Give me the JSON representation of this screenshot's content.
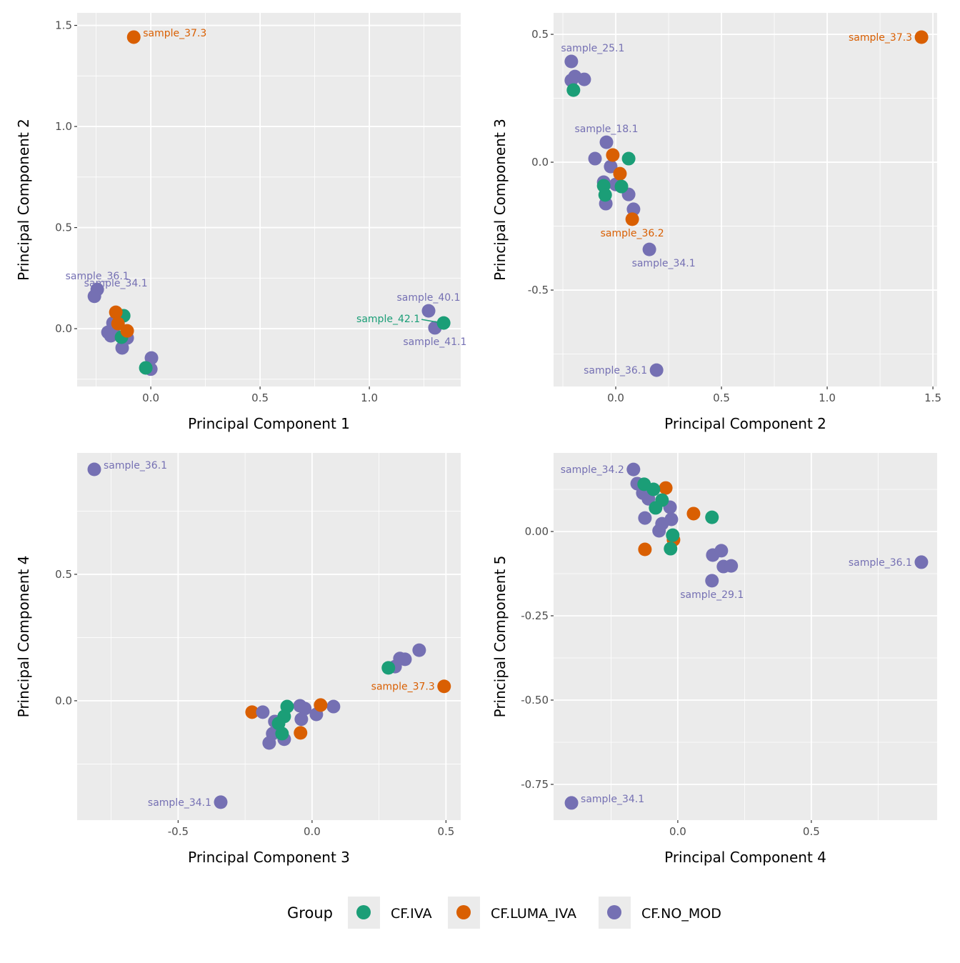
{
  "colors": {
    "CF.IVA": "#1B9E77",
    "CF.LUMA_IVA": "#D95F02",
    "CF.NO_MOD": "#7570B3",
    "panel_bg": "#EBEBEB",
    "grid": "#FFFFFF"
  },
  "legend": {
    "title": "Group",
    "entries": [
      "CF.IVA",
      "CF.LUMA_IVA",
      "CF.NO_MOD"
    ],
    "placement": "bottom"
  },
  "chart_data": [
    {
      "type": "scatter",
      "xlabel": "Principal Component 1",
      "ylabel": "Principal Component 2",
      "xlim": [
        -0.337,
        1.418
      ],
      "ylim": [
        -0.286,
        1.562
      ],
      "grid": true,
      "xticks": [
        {
          "v": 0,
          "label": "0.0"
        },
        {
          "v": 0.5,
          "label": "0.5"
        },
        {
          "v": 1.0,
          "label": "1.0"
        }
      ],
      "yticks": [
        {
          "v": 0,
          "label": "0.0"
        },
        {
          "v": 0.5,
          "label": "0.5"
        },
        {
          "v": 1.0,
          "label": "1.0"
        },
        {
          "v": 1.5,
          "label": "1.5"
        }
      ],
      "points": [
        {
          "x": -0.245,
          "y": 0.194,
          "g": "CF.NO_MOD",
          "label": "sample_36.1",
          "pos": "above"
        },
        {
          "x": -0.258,
          "y": 0.16,
          "g": "CF.NO_MOD",
          "label": "sample_34.1",
          "pos": "above-right"
        },
        {
          "x": -0.173,
          "y": 0.028,
          "g": "CF.NO_MOD"
        },
        {
          "x": -0.167,
          "y": 0.011,
          "g": "CF.NO_MOD"
        },
        {
          "x": -0.196,
          "y": -0.018,
          "g": "CF.NO_MOD"
        },
        {
          "x": -0.183,
          "y": -0.035,
          "g": "CF.NO_MOD"
        },
        {
          "x": -0.108,
          "y": -0.046,
          "g": "CF.NO_MOD"
        },
        {
          "x": -0.131,
          "y": -0.095,
          "g": "CF.NO_MOD"
        },
        {
          "x": 0.003,
          "y": -0.145,
          "g": "CF.NO_MOD"
        },
        {
          "x": 0.0,
          "y": -0.2,
          "g": "CF.NO_MOD"
        },
        {
          "x": -0.124,
          "y": 0.064,
          "g": "CF.IVA"
        },
        {
          "x": -0.134,
          "y": -0.042,
          "g": "CF.IVA"
        },
        {
          "x": -0.023,
          "y": -0.194,
          "g": "CF.IVA"
        },
        {
          "x": -0.16,
          "y": 0.081,
          "g": "CF.LUMA_IVA"
        },
        {
          "x": -0.15,
          "y": 0.025,
          "g": "CF.LUMA_IVA"
        },
        {
          "x": -0.108,
          "y": -0.011,
          "g": "CF.LUMA_IVA"
        },
        {
          "x": -0.078,
          "y": 1.442,
          "g": "CF.LUMA_IVA",
          "label": "sample_37.3",
          "pos": "right"
        },
        {
          "x": 1.271,
          "y": 0.088,
          "g": "CF.NO_MOD",
          "label": "sample_40.1",
          "pos": "above"
        },
        {
          "x": 1.3,
          "y": 0.004,
          "g": "CF.NO_MOD",
          "label": "sample_41.1",
          "pos": "below"
        },
        {
          "x": 1.34,
          "y": 0.028,
          "g": "CF.IVA",
          "label": "sample_42.1",
          "pos": "left-line"
        }
      ]
    },
    {
      "type": "scatter",
      "xlabel": "Principal Component 2",
      "ylabel": "Principal Component 3",
      "xlim": [
        -0.294,
        1.52
      ],
      "ylim": [
        -0.877,
        0.584
      ],
      "grid": true,
      "xticks": [
        {
          "v": 0,
          "label": "0.0"
        },
        {
          "v": 0.5,
          "label": "0.5"
        },
        {
          "v": 1.0,
          "label": "1.0"
        },
        {
          "v": 1.5,
          "label": "1.5"
        }
      ],
      "yticks": [
        {
          "v": -0.5,
          "label": "-0.5"
        },
        {
          "v": 0,
          "label": "0.0"
        },
        {
          "v": 0.5,
          "label": "0.5"
        }
      ],
      "points": [
        {
          "x": -0.21,
          "y": 0.394,
          "g": "CF.NO_MOD",
          "label": "sample_25.1",
          "pos": "above-right"
        },
        {
          "x": -0.193,
          "y": 0.335,
          "g": "CF.NO_MOD"
        },
        {
          "x": -0.149,
          "y": 0.324,
          "g": "CF.NO_MOD"
        },
        {
          "x": -0.21,
          "y": 0.32,
          "g": "CF.NO_MOD"
        },
        {
          "x": -0.2,
          "y": 0.282,
          "g": "CF.IVA"
        },
        {
          "x": -0.044,
          "y": 0.078,
          "g": "CF.NO_MOD",
          "label": "sample_18.1",
          "pos": "above"
        },
        {
          "x": -0.098,
          "y": 0.014,
          "g": "CF.NO_MOD"
        },
        {
          "x": -0.024,
          "y": -0.017,
          "g": "CF.NO_MOD"
        },
        {
          "x": -0.057,
          "y": -0.078,
          "g": "CF.NO_MOD"
        },
        {
          "x": 0.0,
          "y": -0.087,
          "g": "CF.NO_MOD"
        },
        {
          "x": 0.061,
          "y": -0.126,
          "g": "CF.NO_MOD"
        },
        {
          "x": -0.047,
          "y": -0.162,
          "g": "CF.NO_MOD"
        },
        {
          "x": 0.084,
          "y": -0.184,
          "g": "CF.NO_MOD"
        },
        {
          "x": -0.014,
          "y": 0.028,
          "g": "CF.LUMA_IVA"
        },
        {
          "x": 0.061,
          "y": 0.014,
          "g": "CF.IVA"
        },
        {
          "x": 0.02,
          "y": -0.045,
          "g": "CF.LUMA_IVA"
        },
        {
          "x": -0.057,
          "y": -0.092,
          "g": "CF.IVA"
        },
        {
          "x": 0.027,
          "y": -0.095,
          "g": "CF.IVA"
        },
        {
          "x": -0.05,
          "y": -0.128,
          "g": "CF.IVA"
        },
        {
          "x": 0.078,
          "y": -0.223,
          "g": "CF.LUMA_IVA",
          "label": "sample_36.2",
          "pos": "below"
        },
        {
          "x": 0.159,
          "y": -0.341,
          "g": "CF.NO_MOD",
          "label": "sample_34.1",
          "pos": "below-right"
        },
        {
          "x": 0.193,
          "y": -0.813,
          "g": "CF.NO_MOD",
          "label": "sample_36.1",
          "pos": "left"
        },
        {
          "x": 1.446,
          "y": 0.489,
          "g": "CF.LUMA_IVA",
          "label": "sample_37.3",
          "pos": "left"
        }
      ]
    },
    {
      "type": "scatter",
      "xlabel": "Principal Component 3",
      "ylabel": "Principal Component 4",
      "xlim": [
        -0.877,
        0.555
      ],
      "ylim": [
        -0.472,
        0.98
      ],
      "grid": true,
      "xticks": [
        {
          "v": -0.5,
          "label": "-0.5"
        },
        {
          "v": 0,
          "label": "0.0"
        },
        {
          "v": 0.5,
          "label": "0.5"
        }
      ],
      "yticks": [
        {
          "v": 0,
          "label": "0.0"
        },
        {
          "v": 0.5,
          "label": "0.5"
        }
      ],
      "points": [
        {
          "x": -0.813,
          "y": 0.915,
          "g": "CF.NO_MOD",
          "label": "sample_36.1",
          "pos": "right"
        },
        {
          "x": 0.4,
          "y": 0.2,
          "g": "CF.NO_MOD"
        },
        {
          "x": 0.328,
          "y": 0.167,
          "g": "CF.NO_MOD"
        },
        {
          "x": 0.347,
          "y": 0.164,
          "g": "CF.NO_MOD"
        },
        {
          "x": 0.31,
          "y": 0.135,
          "g": "CF.NO_MOD"
        },
        {
          "x": 0.285,
          "y": 0.13,
          "g": "CF.IVA"
        },
        {
          "x": 0.493,
          "y": 0.057,
          "g": "CF.LUMA_IVA",
          "label": "sample_37.3",
          "pos": "left"
        },
        {
          "x": -0.224,
          "y": -0.045,
          "g": "CF.LUMA_IVA"
        },
        {
          "x": -0.184,
          "y": -0.045,
          "g": "CF.NO_MOD"
        },
        {
          "x": -0.045,
          "y": -0.02,
          "g": "CF.NO_MOD"
        },
        {
          "x": 0.08,
          "y": -0.023,
          "g": "CF.NO_MOD"
        },
        {
          "x": 0.016,
          "y": -0.054,
          "g": "CF.NO_MOD"
        },
        {
          "x": -0.027,
          "y": -0.031,
          "g": "CF.NO_MOD"
        },
        {
          "x": -0.04,
          "y": -0.073,
          "g": "CF.NO_MOD"
        },
        {
          "x": -0.139,
          "y": -0.082,
          "g": "CF.NO_MOD"
        },
        {
          "x": -0.147,
          "y": -0.13,
          "g": "CF.NO_MOD"
        },
        {
          "x": -0.104,
          "y": -0.152,
          "g": "CF.NO_MOD"
        },
        {
          "x": -0.16,
          "y": -0.167,
          "g": "CF.NO_MOD"
        },
        {
          "x": -0.093,
          "y": -0.023,
          "g": "CF.IVA"
        },
        {
          "x": 0.032,
          "y": -0.017,
          "g": "CF.LUMA_IVA"
        },
        {
          "x": -0.104,
          "y": -0.062,
          "g": "CF.IVA"
        },
        {
          "x": -0.125,
          "y": -0.09,
          "g": "CF.IVA"
        },
        {
          "x": -0.112,
          "y": -0.13,
          "g": "CF.IVA"
        },
        {
          "x": -0.043,
          "y": -0.127,
          "g": "CF.LUMA_IVA"
        },
        {
          "x": -0.341,
          "y": -0.401,
          "g": "CF.NO_MOD",
          "label": "sample_34.1",
          "pos": "left"
        }
      ]
    },
    {
      "type": "scatter",
      "xlabel": "Principal Component 4",
      "ylabel": "Principal Component 5",
      "xlim": [
        -0.465,
        0.971
      ],
      "ylim": [
        -0.856,
        0.233
      ],
      "grid": true,
      "xticks": [
        {
          "v": 0,
          "label": "0.0"
        },
        {
          "v": 0.5,
          "label": "0.5"
        }
      ],
      "yticks": [
        {
          "v": -0.75,
          "label": "-0.75"
        },
        {
          "v": -0.5,
          "label": "-0.50"
        },
        {
          "v": -0.25,
          "label": "-0.25"
        },
        {
          "v": 0,
          "label": "0.00"
        }
      ],
      "points": [
        {
          "x": -0.166,
          "y": 0.184,
          "g": "CF.NO_MOD",
          "label": "sample_34.2",
          "pos": "left"
        },
        {
          "x": -0.152,
          "y": 0.142,
          "g": "CF.NO_MOD"
        },
        {
          "x": -0.131,
          "y": 0.114,
          "g": "CF.NO_MOD"
        },
        {
          "x": -0.11,
          "y": 0.097,
          "g": "CF.NO_MOD"
        },
        {
          "x": -0.029,
          "y": 0.072,
          "g": "CF.NO_MOD"
        },
        {
          "x": -0.123,
          "y": 0.04,
          "g": "CF.NO_MOD"
        },
        {
          "x": -0.024,
          "y": 0.036,
          "g": "CF.NO_MOD"
        },
        {
          "x": -0.059,
          "y": 0.023,
          "g": "CF.NO_MOD"
        },
        {
          "x": -0.07,
          "y": 0.002,
          "g": "CF.NO_MOD"
        },
        {
          "x": -0.126,
          "y": 0.14,
          "g": "CF.IVA"
        },
        {
          "x": -0.045,
          "y": 0.129,
          "g": "CF.LUMA_IVA"
        },
        {
          "x": -0.091,
          "y": 0.125,
          "g": "CF.IVA"
        },
        {
          "x": -0.059,
          "y": 0.093,
          "g": "CF.IVA"
        },
        {
          "x": -0.083,
          "y": 0.07,
          "g": "CF.IVA"
        },
        {
          "x": 0.059,
          "y": 0.053,
          "g": "CF.LUMA_IVA"
        },
        {
          "x": 0.128,
          "y": 0.042,
          "g": "CF.IVA"
        },
        {
          "x": -0.016,
          "y": -0.025,
          "g": "CF.LUMA_IVA"
        },
        {
          "x": -0.019,
          "y": -0.011,
          "g": "CF.IVA"
        },
        {
          "x": -0.123,
          "y": -0.053,
          "g": "CF.LUMA_IVA"
        },
        {
          "x": -0.027,
          "y": -0.051,
          "g": "CF.IVA"
        },
        {
          "x": 0.131,
          "y": -0.07,
          "g": "CF.NO_MOD"
        },
        {
          "x": 0.163,
          "y": -0.057,
          "g": "CF.NO_MOD"
        },
        {
          "x": 0.171,
          "y": -0.104,
          "g": "CF.NO_MOD"
        },
        {
          "x": 0.2,
          "y": -0.102,
          "g": "CF.NO_MOD"
        },
        {
          "x": 0.128,
          "y": -0.146,
          "g": "CF.NO_MOD",
          "label": "sample_29.1",
          "pos": "below"
        },
        {
          "x": 0.912,
          "y": -0.091,
          "g": "CF.NO_MOD",
          "label": "sample_36.1",
          "pos": "left"
        },
        {
          "x": -0.398,
          "y": -0.805,
          "g": "CF.NO_MOD",
          "label": "sample_34.1",
          "pos": "right"
        }
      ]
    }
  ]
}
